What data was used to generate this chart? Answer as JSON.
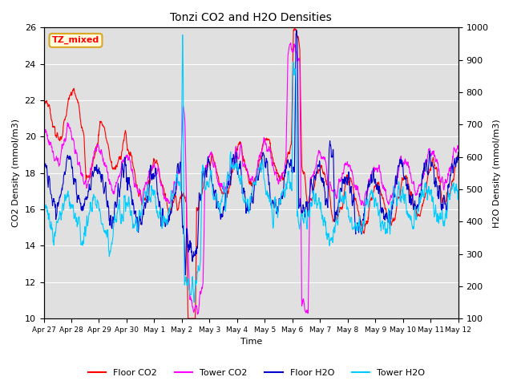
{
  "title": "Tonzi CO2 and H2O Densities",
  "xlabel": "Time",
  "ylabel_left": "CO2 Density (mmol/m3)",
  "ylabel_right": "H2O Density (mmol/m3)",
  "annotation": "TZ_mixed",
  "ylim_left": [
    10,
    26
  ],
  "ylim_right": [
    100,
    1000
  ],
  "xtick_labels": [
    "Apr 27",
    "Apr 28",
    "Apr 29",
    "Apr 30",
    "May 1",
    "May 2",
    "May 3",
    "May 4",
    "May 5",
    "May 6",
    "May 7",
    "May 8",
    "May 9",
    "May 10",
    "May 11",
    "May 12"
  ],
  "colors": {
    "floor_co2": "#FF0000",
    "tower_co2": "#FF00FF",
    "floor_h2o": "#0000CC",
    "tower_h2o": "#00CCFF"
  },
  "legend_labels": [
    "Floor CO2",
    "Tower CO2",
    "Floor H2O",
    "Tower H2O"
  ],
  "bg_color": "#E0E0E0",
  "line_width": 0.8,
  "n_points": 1500,
  "seed": 7
}
